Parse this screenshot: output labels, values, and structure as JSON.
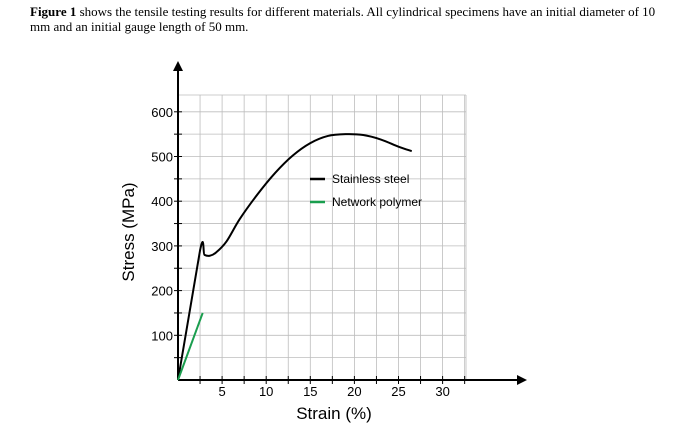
{
  "caption": {
    "bold": "Figure 1",
    "text": " shows the tensile testing results for different materials. All cylindrical specimens have an initial diameter of 10 mm and an initial gauge length of 50 mm."
  },
  "chart_data": {
    "type": "line",
    "title": "",
    "xlabel": "Strain (%)",
    "ylabel": "Stress (MPa)",
    "xlim": [
      0,
      36
    ],
    "ylim": [
      0,
      640
    ],
    "x_ticks": [
      5,
      10,
      15,
      20,
      25,
      30
    ],
    "y_ticks": [
      100,
      200,
      300,
      400,
      500,
      600
    ],
    "grid": true,
    "legend_position": "right-middle",
    "series": [
      {
        "name": "Stainless steel",
        "color": "#000000",
        "points": [
          [
            0,
            0
          ],
          [
            2.5,
            290
          ],
          [
            3,
            280
          ],
          [
            3.6,
            278
          ],
          [
            4.3,
            285
          ],
          [
            5.5,
            310
          ],
          [
            7,
            360
          ],
          [
            9,
            415
          ],
          [
            11,
            463
          ],
          [
            13,
            502
          ],
          [
            15,
            530
          ],
          [
            17,
            546
          ],
          [
            19,
            550
          ],
          [
            21,
            548
          ],
          [
            23,
            538
          ],
          [
            25,
            522
          ],
          [
            26.5,
            512
          ]
        ]
      },
      {
        "name": "Network polymer",
        "color": "#1a9e4e",
        "points": [
          [
            0,
            0
          ],
          [
            2.8,
            150
          ]
        ]
      }
    ]
  }
}
